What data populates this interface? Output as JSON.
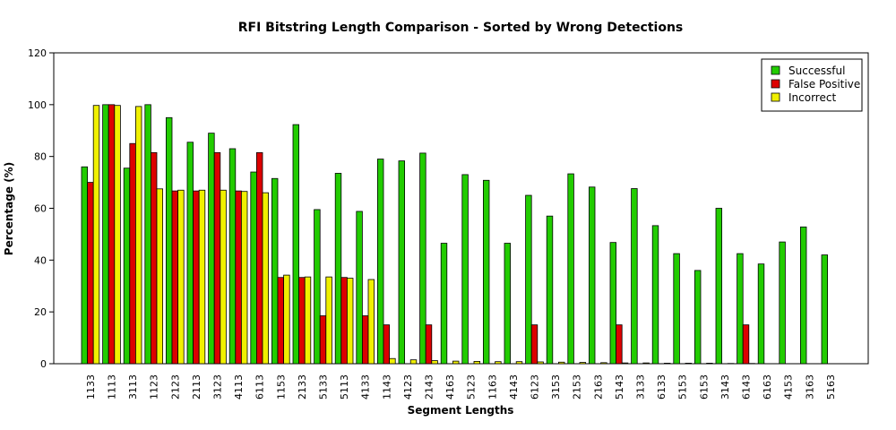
{
  "chart_data": {
    "type": "bar",
    "title": "RFI Bitstring Length Comparison - Sorted by Wrong Detections",
    "xlabel": "Segment Lengths",
    "ylabel": "Percentage (%)",
    "ylim": [
      0,
      120
    ],
    "yticks": [
      0,
      20,
      40,
      60,
      80,
      100,
      120
    ],
    "legend_position": "top-right",
    "categories": [
      "1133",
      "1113",
      "3113",
      "1123",
      "2123",
      "2113",
      "3123",
      "4113",
      "6113",
      "1153",
      "2133",
      "5133",
      "5113",
      "4133",
      "1143",
      "4123",
      "2143",
      "4163",
      "5123",
      "1163",
      "4143",
      "6123",
      "3153",
      "2153",
      "2163",
      "5143",
      "3133",
      "6133",
      "5153",
      "6153",
      "3143",
      "6143",
      "6163",
      "4153",
      "3163",
      "5163"
    ],
    "series": [
      {
        "name": "Successful",
        "color": "#22cc00",
        "values": [
          76,
          100,
          75.5,
          100,
          95,
          85.5,
          89,
          83,
          74,
          71.5,
          92.3,
          59.5,
          73.5,
          58.8,
          79,
          78.3,
          81.3,
          46.5,
          73,
          70.8,
          46.5,
          65,
          57,
          73.3,
          68.2,
          46.8,
          67.6,
          53.3,
          42.5,
          36,
          60,
          42.5,
          38.5,
          47,
          52.8,
          42
        ]
      },
      {
        "name": "False Positive",
        "color": "#dd0000",
        "values": [
          70,
          100,
          85,
          81.5,
          66.7,
          66.7,
          81.5,
          66.7,
          81.5,
          33.3,
          33.3,
          18.5,
          33.3,
          18.5,
          15,
          0,
          15,
          0,
          0,
          0,
          0,
          15,
          0,
          0,
          0,
          15,
          0,
          0,
          0,
          0,
          0,
          15,
          0,
          0,
          0,
          0
        ]
      },
      {
        "name": "Incorrect",
        "color": "#f0f000",
        "values": [
          99.7,
          99.7,
          99.3,
          67.5,
          67,
          67,
          67,
          66.5,
          66,
          34.2,
          33.5,
          33.5,
          33,
          32.5,
          2,
          1.5,
          1.2,
          1,
          0.9,
          0.8,
          0.8,
          0.7,
          0.6,
          0.5,
          0.4,
          0.3,
          0.3,
          0.2,
          0.2,
          0.2,
          0.1,
          0.1,
          0,
          0,
          0,
          0
        ]
      }
    ]
  }
}
